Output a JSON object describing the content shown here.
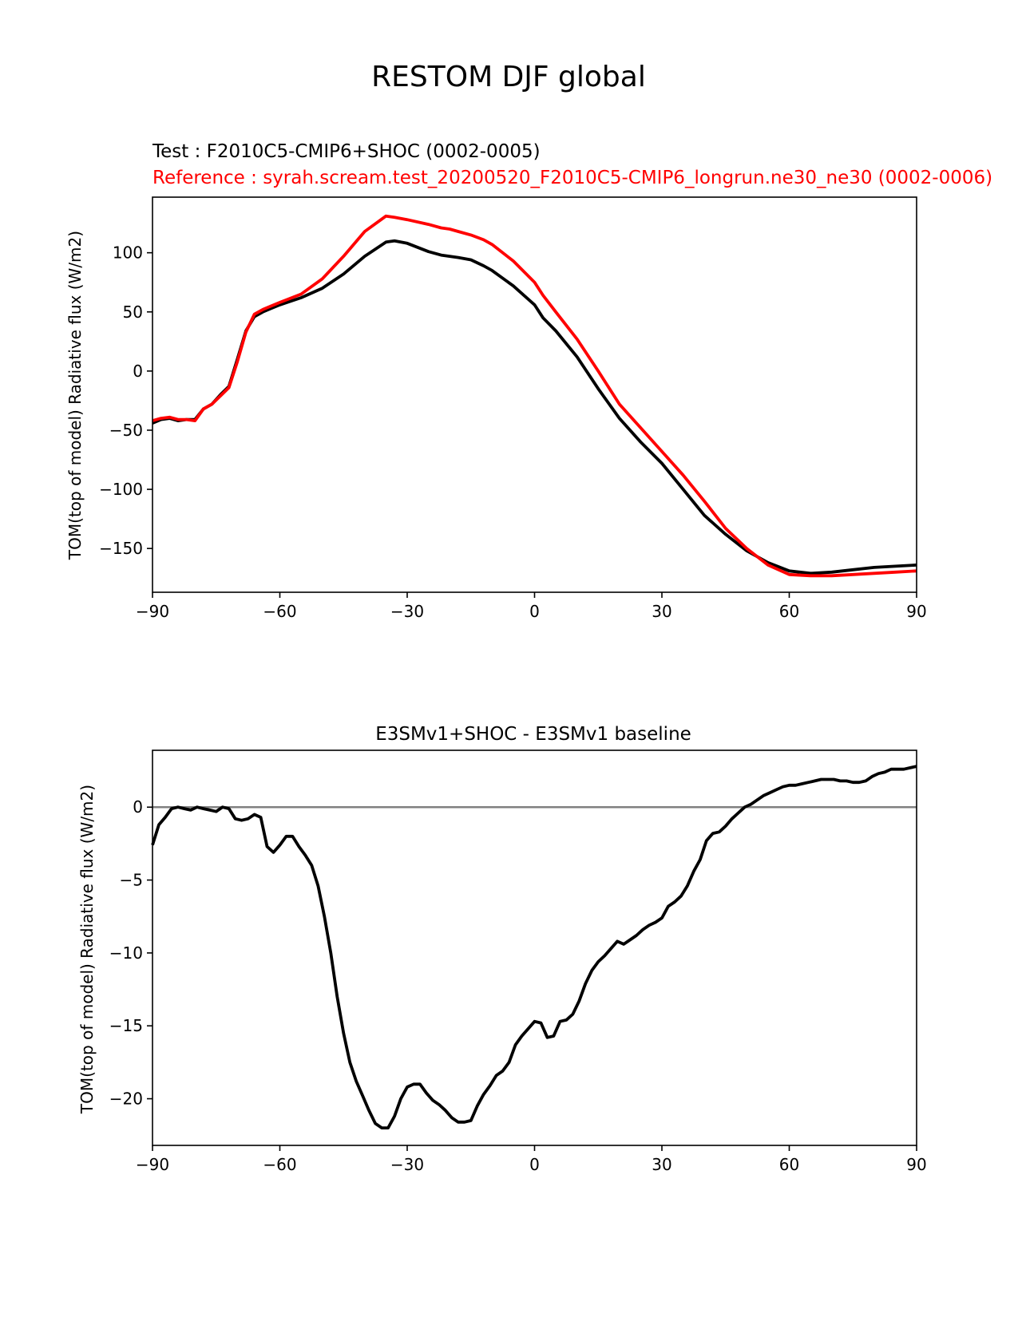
{
  "figure": {
    "suptitle": "RESTOM DJF global"
  },
  "colors": {
    "test": "#000000",
    "reference": "#ff0000",
    "zero_line": "#808080",
    "axes": "#000000",
    "background": "#ffffff"
  },
  "chart_data": [
    {
      "type": "line",
      "title": "",
      "test_label": "Test : F2010C5-CMIP6+SHOC (0002-0005)",
      "reference_label": "Reference : syrah.scream.test_20200520_F2010C5-CMIP6_longrun.ne30_ne30 (0002-0006)",
      "xlabel": "",
      "ylabel": "TOM(top of model) Radiative flux (W/m2)",
      "xlim": [
        -90,
        90
      ],
      "ylim": [
        -187,
        147
      ],
      "xticks": [
        -90,
        -60,
        -30,
        0,
        30,
        60,
        90
      ],
      "xtick_labels": [
        "−90",
        "−60",
        "−30",
        "0",
        "30",
        "60",
        "90"
      ],
      "yticks": [
        100,
        50,
        0,
        -50,
        -100,
        -150
      ],
      "ytick_labels": [
        "100",
        "50",
        "0",
        "−50",
        "−100",
        "−150"
      ],
      "grid": false,
      "legend": "none",
      "series": [
        {
          "role": "test",
          "color": "#000000",
          "x": [
            -90,
            -88,
            -86,
            -84,
            -82,
            -80,
            -78,
            -76,
            -74,
            -72,
            -70,
            -68,
            -66,
            -64,
            -62,
            -60,
            -55,
            -50,
            -45,
            -40,
            -35,
            -33,
            -30,
            -25,
            -22,
            -20,
            -18,
            -15,
            -12,
            -10,
            -5,
            0,
            2,
            5,
            10,
            15,
            20,
            25,
            30,
            35,
            40,
            45,
            50,
            55,
            60,
            65,
            70,
            75,
            80,
            85,
            90
          ],
          "y": [
            -44,
            -41,
            -40,
            -42,
            -41,
            -41,
            -32,
            -28,
            -20,
            -13,
            10,
            34,
            46,
            50,
            53,
            56,
            62,
            70,
            82,
            97,
            109,
            110,
            108,
            101,
            98,
            97,
            96,
            94,
            89,
            85,
            72,
            56,
            45,
            34,
            12,
            -15,
            -40,
            -60,
            -78,
            -100,
            -122,
            -138,
            -152,
            -162,
            -169,
            -171,
            -170,
            -168,
            -166,
            -165,
            -164
          ]
        },
        {
          "role": "reference",
          "color": "#ff0000",
          "x": [
            -90,
            -88,
            -86,
            -84,
            -82,
            -80,
            -78,
            -76,
            -74,
            -72,
            -70,
            -68,
            -66,
            -64,
            -62,
            -60,
            -55,
            -50,
            -45,
            -40,
            -35,
            -33,
            -30,
            -25,
            -22,
            -20,
            -18,
            -15,
            -12,
            -10,
            -5,
            0,
            2,
            5,
            10,
            15,
            20,
            25,
            30,
            35,
            40,
            45,
            50,
            55,
            60,
            65,
            70,
            75,
            80,
            85,
            90
          ],
          "y": [
            -42,
            -40,
            -39,
            -41,
            -41,
            -42,
            -32,
            -28,
            -21,
            -14,
            8,
            33,
            48,
            52,
            55,
            58,
            65,
            78,
            97,
            118,
            131,
            130,
            128,
            124,
            121,
            120,
            118,
            115,
            111,
            107,
            93,
            75,
            64,
            50,
            27,
            0,
            -28,
            -48,
            -68,
            -88,
            -110,
            -133,
            -150,
            -164,
            -172,
            -173,
            -173,
            -172,
            -171,
            -170,
            -169
          ]
        }
      ]
    },
    {
      "type": "line",
      "title": "E3SMv1+SHOC - E3SMv1 baseline",
      "xlabel": "",
      "ylabel": "TOM(top of model) Radiative flux (W/m2)",
      "xlim": [
        -90,
        90
      ],
      "ylim": [
        -23.2,
        3.9
      ],
      "xticks": [
        -90,
        -60,
        -30,
        0,
        30,
        60,
        90
      ],
      "xtick_labels": [
        "−90",
        "−60",
        "−30",
        "0",
        "30",
        "60",
        "90"
      ],
      "yticks": [
        0,
        -5,
        -10,
        -15,
        -20
      ],
      "ytick_labels": [
        "0",
        "−5",
        "−10",
        "−15",
        "−20"
      ],
      "grid": false,
      "legend": "none",
      "zero_line": true,
      "series": [
        {
          "role": "difference",
          "color": "#000000",
          "x": [
            -90,
            -88.5,
            -87,
            -85.5,
            -84,
            -82.5,
            -81,
            -79.5,
            -78,
            -76.5,
            -75,
            -73.5,
            -72,
            -70.5,
            -69,
            -67.5,
            -66,
            -64.5,
            -63,
            -61.5,
            -60,
            -58.5,
            -57,
            -55.5,
            -54,
            -52.5,
            -51,
            -49.5,
            -48,
            -46.5,
            -45,
            -43.5,
            -42,
            -40.5,
            -39,
            -37.5,
            -36,
            -34.5,
            -33,
            -31.5,
            -30,
            -28.5,
            -27,
            -25.5,
            -24,
            -22.5,
            -21,
            -19.5,
            -18,
            -16.5,
            -15,
            -13.5,
            -12,
            -10.5,
            -9,
            -7.5,
            -6,
            -4.5,
            -3,
            -1.5,
            0,
            1.5,
            3,
            4.5,
            6,
            7.5,
            9,
            10.5,
            12,
            13.5,
            15,
            16.5,
            18,
            19.5,
            21,
            22.5,
            24,
            25.5,
            27,
            28.5,
            30,
            31.5,
            33,
            34.5,
            36,
            37.5,
            39,
            40.5,
            42,
            43.5,
            45,
            46.5,
            48,
            49.5,
            51,
            52.5,
            54,
            55.5,
            57,
            58.5,
            60,
            61.5,
            63,
            64.5,
            66,
            67.5,
            69,
            70.5,
            72,
            73.5,
            75,
            76.5,
            78,
            79.5,
            81,
            82.5,
            84,
            85.5,
            87,
            88.5,
            90
          ],
          "y": [
            -2.6,
            -1.2,
            -0.7,
            -0.1,
            0,
            -0.1,
            -0.2,
            0,
            -0.1,
            -0.2,
            -0.3,
            0,
            -0.1,
            -0.8,
            -0.9,
            -0.8,
            -0.5,
            -0.7,
            -2.7,
            -3.1,
            -2.6,
            -2,
            -2,
            -2.7,
            -3.3,
            -4,
            -5.4,
            -7.5,
            -10,
            -13,
            -15.5,
            -17.5,
            -18.8,
            -19.8,
            -20.8,
            -21.7,
            -22,
            -22,
            -21.2,
            -20,
            -19.2,
            -19,
            -19,
            -19.6,
            -20.1,
            -20.4,
            -20.8,
            -21.3,
            -21.6,
            -21.6,
            -21.5,
            -20.5,
            -19.7,
            -19.1,
            -18.4,
            -18.1,
            -17.5,
            -16.3,
            -15.7,
            -15.2,
            -14.7,
            -14.8,
            -15.8,
            -15.7,
            -14.7,
            -14.6,
            -14.2,
            -13.3,
            -12.1,
            -11.2,
            -10.6,
            -10.2,
            -9.7,
            -9.2,
            -9.4,
            -9.1,
            -8.8,
            -8.4,
            -8.1,
            -7.9,
            -7.6,
            -6.8,
            -6.5,
            -6.1,
            -5.4,
            -4.4,
            -3.6,
            -2.3,
            -1.8,
            -1.7,
            -1.3,
            -0.8,
            -0.4,
            0,
            0.2,
            0.5,
            0.8,
            1,
            1.2,
            1.4,
            1.5,
            1.5,
            1.6,
            1.7,
            1.8,
            1.9,
            1.9,
            1.9,
            1.8,
            1.8,
            1.7,
            1.7,
            1.8,
            2.1,
            2.3,
            2.4,
            2.6,
            2.6,
            2.6,
            2.7,
            2.8
          ]
        }
      ]
    }
  ]
}
